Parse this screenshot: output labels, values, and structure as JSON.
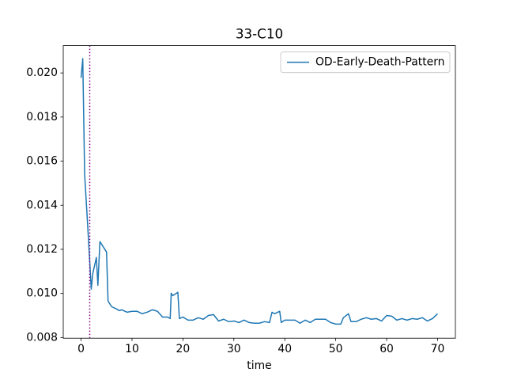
{
  "chart_data": {
    "type": "line",
    "title": "33-C10",
    "x_label": "time",
    "x": [
      0,
      0.33,
      0.7,
      1.3,
      2,
      2.3,
      3,
      3.3,
      3.7,
      5,
      5.3,
      6,
      7,
      7.5,
      8,
      9,
      10,
      11,
      12,
      13,
      14,
      15,
      16,
      17,
      17.5,
      17.7,
      18,
      19,
      19.3,
      20,
      21,
      22,
      23,
      24,
      25,
      26,
      27,
      28,
      29,
      30,
      31,
      32,
      33,
      34,
      35,
      36,
      37,
      37.5,
      38,
      39,
      39.3,
      40,
      42,
      43,
      44,
      45,
      46,
      48,
      49,
      50,
      51,
      51.5,
      52.5,
      53,
      54,
      55,
      56,
      57,
      58,
      59,
      60,
      61,
      62,
      63,
      64,
      65,
      66,
      67,
      68,
      69,
      70
    ],
    "series": [
      {
        "name": "OD-Early-Death-Pattern",
        "color": "#1f77b4",
        "values": [
          0.01978,
          0.02065,
          0.0154,
          0.01307,
          0.0102,
          0.0109,
          0.01163,
          0.01037,
          0.01235,
          0.01188,
          0.00965,
          0.0094,
          0.00929,
          0.00922,
          0.00926,
          0.00915,
          0.00919,
          0.00919,
          0.00908,
          0.00915,
          0.00926,
          0.00919,
          0.00893,
          0.00893,
          0.00886,
          0.01001,
          0.0099,
          0.01005,
          0.00886,
          0.00893,
          0.00879,
          0.00879,
          0.0089,
          0.00883,
          0.009,
          0.00904,
          0.00875,
          0.00883,
          0.00872,
          0.00875,
          0.00868,
          0.00879,
          0.00868,
          0.00865,
          0.00865,
          0.00872,
          0.00868,
          0.00915,
          0.00908,
          0.00919,
          0.00868,
          0.00879,
          0.00879,
          0.00865,
          0.00879,
          0.00868,
          0.00883,
          0.00883,
          0.00868,
          0.00861,
          0.00861,
          0.0089,
          0.00908,
          0.00872,
          0.00872,
          0.00883,
          0.0089,
          0.00883,
          0.00886,
          0.00875,
          0.009,
          0.00897,
          0.00879,
          0.00886,
          0.00879,
          0.00886,
          0.00883,
          0.0089,
          0.00875,
          0.00886,
          0.00908
        ]
      }
    ],
    "vline_x": 1.7,
    "vline_color": "#800080",
    "xlim": [
      -3.5,
      73.5
    ],
    "xticks": [
      0,
      10,
      20,
      30,
      40,
      50,
      60,
      70
    ],
    "ylim": [
      0.00797,
      0.02124
    ],
    "yticks": [
      {
        "value": 0.008,
        "label": "0.008"
      },
      {
        "value": 0.01,
        "label": "0.010"
      },
      {
        "value": 0.012,
        "label": "0.012"
      },
      {
        "value": 0.014,
        "label": "0.014"
      },
      {
        "value": 0.016,
        "label": "0.016"
      },
      {
        "value": 0.018,
        "label": "0.018"
      },
      {
        "value": 0.02,
        "label": "0.020"
      }
    ],
    "legend_loc": "upper right"
  }
}
